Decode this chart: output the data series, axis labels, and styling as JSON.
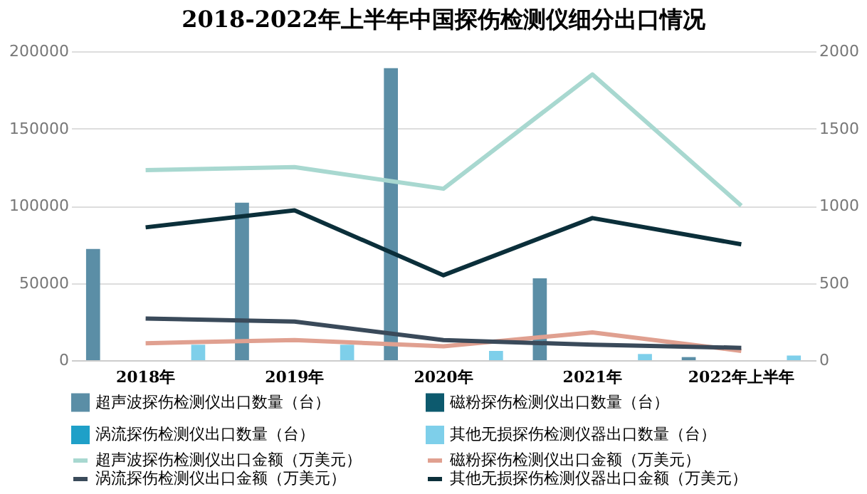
{
  "chart_data": {
    "type": "bar",
    "title": "2018-2022年上半年中国探伤检测仪细分出口情况",
    "categories": [
      "2018年",
      "2019年",
      "2020年",
      "2021年",
      "2022年上半年"
    ],
    "series": [
      {
        "name": "超声波探伤检测仪出口数量（台）",
        "color": "#5b8ea6",
        "values": [
          72000,
          102000,
          189000,
          53000,
          2000
        ]
      },
      {
        "name": "磁粉探伤检测仪出口数量（台）",
        "color": "#0d5a6e",
        "values": [
          0,
          0,
          0,
          0,
          0
        ]
      },
      {
        "name": "涡流探伤检测仪出口数量（台）",
        "color": "#1fa0c8",
        "values": [
          0,
          0,
          0,
          0,
          0
        ]
      },
      {
        "name": "其他无损探伤检测仪器出口数量（台）",
        "color": "#7ecfea",
        "values": [
          10000,
          10000,
          6000,
          4000,
          3000
        ]
      },
      {
        "name": "超声波探伤检测仪出口金额（万美元）",
        "type": "line",
        "axis": "y2",
        "color": "#a8d8d0",
        "values": [
          1230,
          1250,
          1110,
          1850,
          1000
        ]
      },
      {
        "name": "磁粉探伤检测仪出口金额（万美元）",
        "type": "line",
        "axis": "y2",
        "color": "#e0a090",
        "values": [
          110,
          130,
          90,
          180,
          60
        ]
      },
      {
        "name": "涡流探伤检测仪出口金额（万美元）",
        "type": "line",
        "axis": "y2",
        "color": "#3a4a5a",
        "values": [
          270,
          250,
          130,
          100,
          80
        ]
      },
      {
        "name": "其他无损探伤检测仪器出口金额（万美元）",
        "type": "line",
        "axis": "y2",
        "color": "#0b2f3a",
        "values": [
          860,
          970,
          550,
          920,
          750
        ]
      }
    ],
    "ylim": [
      0,
      200000
    ],
    "yticks": [
      0,
      50000,
      100000,
      150000,
      200000
    ],
    "y2lim": [
      0,
      2000
    ],
    "y2ticks": [
      0,
      500,
      1000,
      1500,
      2000
    ],
    "grid": "y",
    "legend": "bottom",
    "marker": "none",
    "line_style": "solid"
  }
}
